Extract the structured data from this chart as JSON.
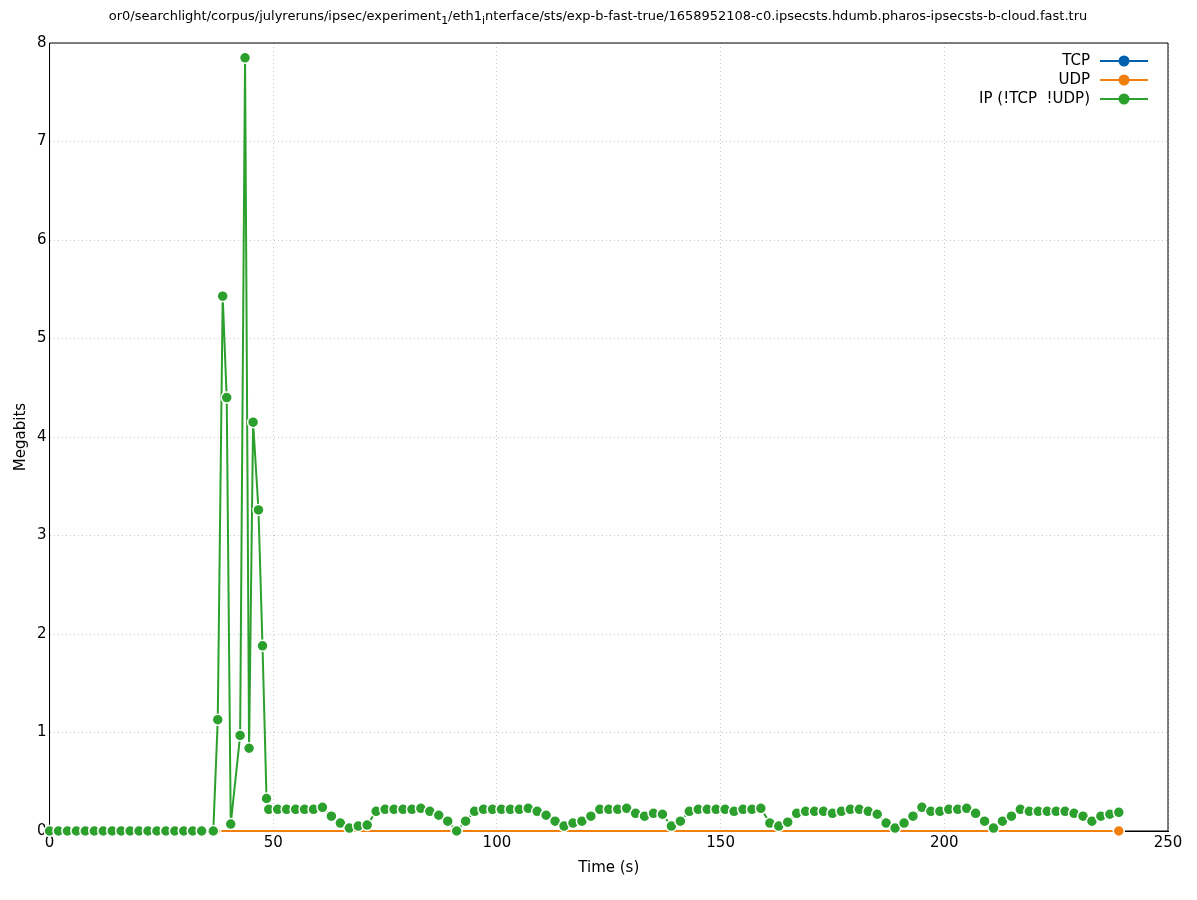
{
  "chart_data": {
    "type": "line",
    "title": "or0/searchlight/corpus/julyreruns/ipsec/experiment$_{1}$/eth1$_{i}$nterface/sts/exp-b-fast-true/1658952108-c0.ipsecsts.hdumb.pharos-ipsecsts-b-cloud.fast.tru",
    "xlabel": "Time (s)",
    "ylabel": "Megabits",
    "xlim": [
      0,
      250
    ],
    "ylim": [
      0,
      8
    ],
    "xticks": [
      0,
      50,
      100,
      150,
      200,
      250
    ],
    "yticks": [
      0,
      1,
      2,
      3,
      4,
      5,
      6,
      7,
      8
    ],
    "grid": true,
    "legend": "top right",
    "marker": "circle",
    "line_style": "solid",
    "x": [
      37,
      239
    ],
    "series": [
      {
        "name": "TCP",
        "color": "#0060ad",
        "values": [
          null,
          null
        ]
      },
      {
        "name": "UDP",
        "color": "#f07f0c",
        "values": [
          0,
          0
        ]
      },
      {
        "name": "IP (!TCP  !UDP)",
        "color": "#2ca02c",
        "x": [
          0,
          2,
          4,
          6,
          8,
          10,
          12,
          14,
          16,
          18,
          20,
          22,
          24,
          26,
          28,
          30,
          32,
          34,
          36.6,
          37.6,
          38.7,
          39.6,
          40.5,
          42.6,
          43.7,
          44.6,
          45.5,
          46.7,
          47.6,
          48.5,
          49,
          51,
          53,
          55,
          57,
          59,
          61,
          63,
          65,
          67,
          69,
          71,
          73,
          75,
          77,
          79,
          81,
          83,
          85,
          87,
          89,
          91,
          93,
          95,
          97,
          99,
          101,
          103,
          105,
          107,
          109,
          111,
          113,
          115,
          117,
          119,
          121,
          123,
          125,
          127,
          129,
          131,
          133,
          135,
          137,
          139,
          141,
          143,
          145,
          147,
          149,
          151,
          153,
          155,
          157,
          159,
          161,
          163,
          165,
          167,
          169,
          171,
          173,
          175,
          177,
          179,
          181,
          183,
          185,
          187,
          189,
          191,
          193,
          195,
          197,
          199,
          201,
          203,
          205,
          207,
          209,
          211,
          213,
          215,
          217,
          219,
          221,
          223,
          225,
          227,
          229,
          231,
          233,
          235,
          237,
          239
        ],
        "values": [
          0,
          0,
          0,
          0,
          0,
          0,
          0,
          0,
          0,
          0,
          0,
          0,
          0,
          0,
          0,
          0,
          0,
          0,
          0,
          1.13,
          5.43,
          4.4,
          0.07,
          0.97,
          7.85,
          0.84,
          4.15,
          3.26,
          1.88,
          0.33,
          0.22,
          0.22,
          0.22,
          0.22,
          0.22,
          0.22,
          0.24,
          0.15,
          0.08,
          0.03,
          0.05,
          0.06,
          0.2,
          0.22,
          0.22,
          0.22,
          0.22,
          0.23,
          0.2,
          0.16,
          0.1,
          0,
          0.1,
          0.2,
          0.22,
          0.22,
          0.22,
          0.22,
          0.22,
          0.23,
          0.2,
          0.16,
          0.1,
          0.05,
          0.08,
          0.1,
          0.15,
          0.22,
          0.22,
          0.22,
          0.23,
          0.18,
          0.15,
          0.18,
          0.17,
          0.05,
          0.1,
          0.2,
          0.22,
          0.22,
          0.22,
          0.22,
          0.2,
          0.22,
          0.22,
          0.23,
          0.08,
          0.05,
          0.09,
          0.18,
          0.2,
          0.2,
          0.2,
          0.18,
          0.2,
          0.22,
          0.22,
          0.2,
          0.17,
          0.08,
          0.03,
          0.08,
          0.15,
          0.24,
          0.2,
          0.2,
          0.22,
          0.22,
          0.23,
          0.18,
          0.1,
          0.03,
          0.1,
          0.15,
          0.22,
          0.2,
          0.2,
          0.2,
          0.2,
          0.2,
          0.18,
          0.15,
          0.1,
          0.15,
          0.17,
          0.19
        ]
      }
    ]
  }
}
